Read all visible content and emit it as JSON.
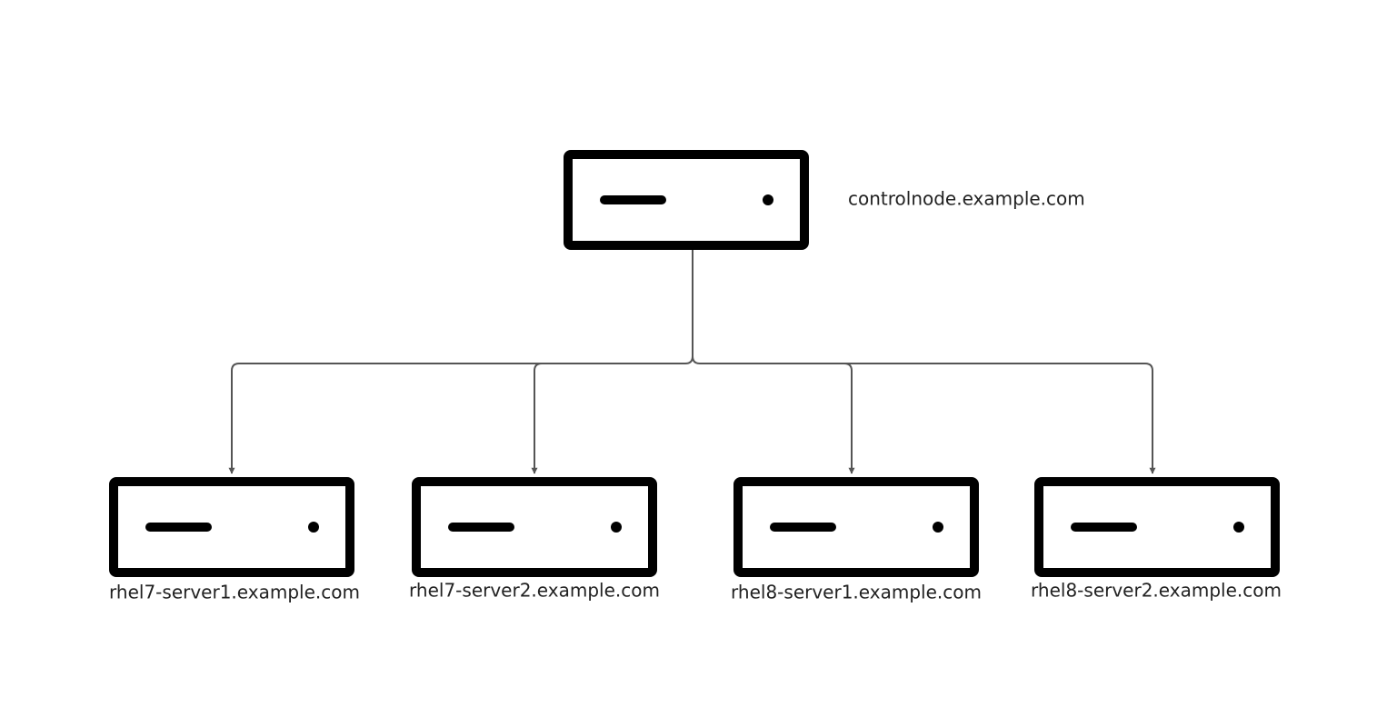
{
  "nodes": [
    {
      "label": "controlnode.example.com"
    },
    {
      "label": "rhel7-server1.example.com"
    },
    {
      "label": "rhel7-server2.example.com"
    },
    {
      "label": "rhel8-server1.example.com"
    },
    {
      "label": "rhel8-server2.example.com"
    }
  ]
}
